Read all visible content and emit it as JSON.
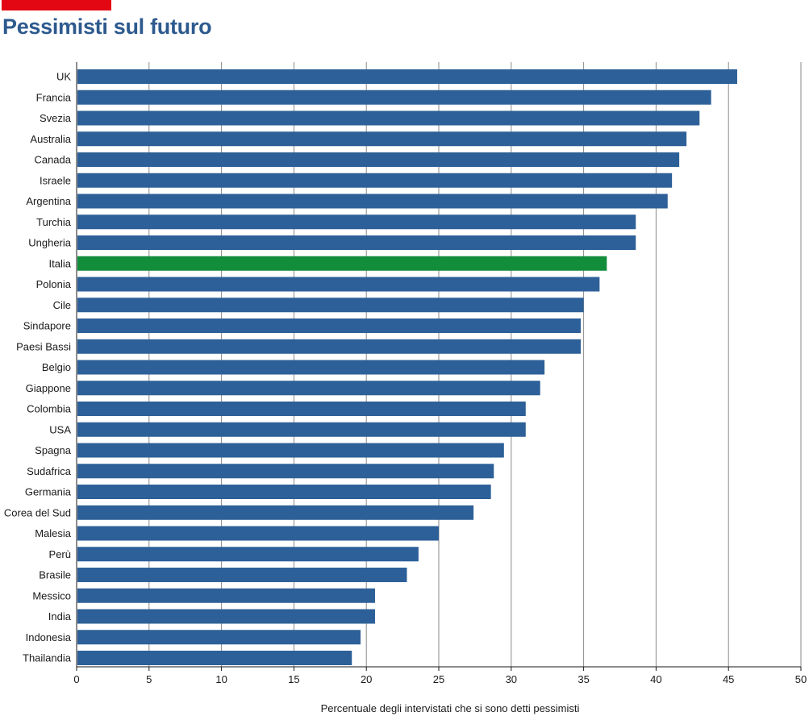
{
  "header": {
    "accent_color": "#e30613"
  },
  "chart_data": {
    "type": "bar",
    "orientation": "horizontal",
    "title": "Pessimisti sul futuro",
    "title_color": "#2d5a8e",
    "xlabel": "Percentuale degli intervistati che si sono detti pessimisti",
    "ylabel": "",
    "xlim": [
      0,
      50
    ],
    "xticks": [
      0,
      5,
      10,
      15,
      20,
      25,
      30,
      35,
      40,
      45,
      50
    ],
    "grid": "vertical",
    "bar_color": "#2d6098",
    "highlight_color": "#128d3a",
    "highlight_category": "Italia",
    "categories": [
      "UK",
      "Francia",
      "Svezia",
      "Australia",
      "Canada",
      "Israele",
      "Argentina",
      "Turchia",
      "Ungheria",
      "Italia",
      "Polonia",
      "Cile",
      "Sindapore",
      "Paesi Bassi",
      "Belgio",
      "Giappone",
      "Colombia",
      "USA",
      "Spagna",
      "Sudafrica",
      "Germania",
      "Corea del Sud",
      "Malesia",
      "Perù",
      "Brasile",
      "Messico",
      "India",
      "Indonesia",
      "Thailandia"
    ],
    "values": [
      45.6,
      43.8,
      43.0,
      42.1,
      41.6,
      41.1,
      40.8,
      38.6,
      38.6,
      36.6,
      36.1,
      35.0,
      34.8,
      34.8,
      32.3,
      32.0,
      31.0,
      31.0,
      29.5,
      28.8,
      28.6,
      27.4,
      25.0,
      23.6,
      22.8,
      20.6,
      20.6,
      19.6,
      19.0
    ]
  }
}
